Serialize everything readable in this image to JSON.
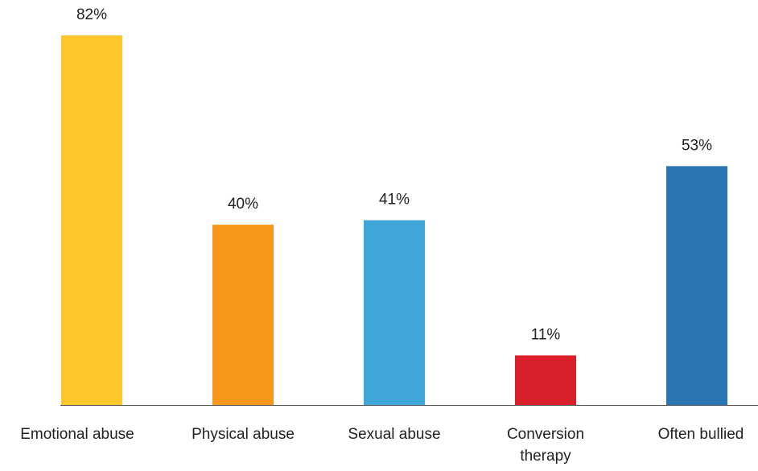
{
  "chart_data": {
    "type": "bar",
    "categories": [
      [
        "Emotional abuse"
      ],
      [
        "Physical abuse"
      ],
      [
        "Sexual abuse"
      ],
      [
        "Conversion",
        "therapy"
      ],
      [
        "Often bullied"
      ]
    ],
    "values": [
      82,
      40,
      41,
      11,
      53
    ],
    "value_labels": [
      "82%",
      "40%",
      "41%",
      "11%",
      "53%"
    ],
    "colors": [
      "#FFC72C",
      "#F7981D",
      "#3EA6D8",
      "#D81F2A",
      "#2A76B3"
    ],
    "axis_color": "#555555",
    "title": "",
    "xlabel": "",
    "ylabel": "",
    "ylim": [
      0,
      82
    ],
    "grid": false,
    "legend": "none"
  }
}
